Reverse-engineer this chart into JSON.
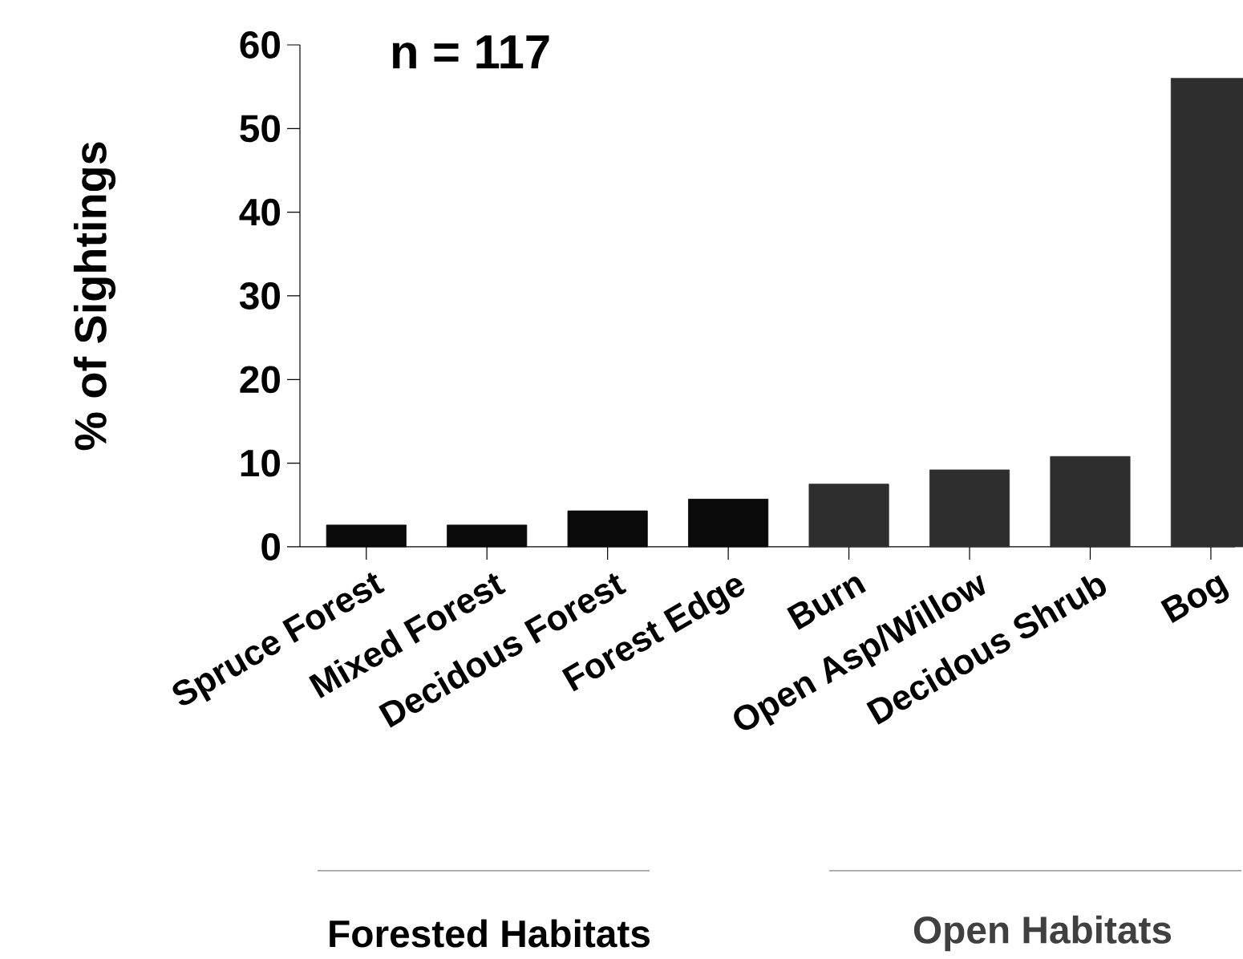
{
  "chart_data": {
    "type": "bar",
    "ylabel": "% of Sightings",
    "categories": [
      "Spruce Forest",
      "Mixed Forest",
      "Decidous Forest",
      "Forest Edge",
      "Burn",
      "Open Asp/Willow",
      "Decidous Shrub",
      "Bog"
    ],
    "values": [
      2.6,
      2.6,
      4.3,
      5.7,
      7.5,
      9.2,
      10.8,
      56.0
    ],
    "colors": [
      "#0a0a0a",
      "#0a0a0a",
      "#0a0a0a",
      "#0a0a0a",
      "#2e2e2e",
      "#2e2e2e",
      "#2e2e2e",
      "#2e2e2e"
    ],
    "ylim": [
      0,
      60
    ],
    "yticks": [
      0,
      10,
      20,
      30,
      40,
      50,
      60
    ],
    "grid": false,
    "annotations": [
      "n = 117",
      "Forested Habitats",
      "Open Habitats"
    ]
  }
}
